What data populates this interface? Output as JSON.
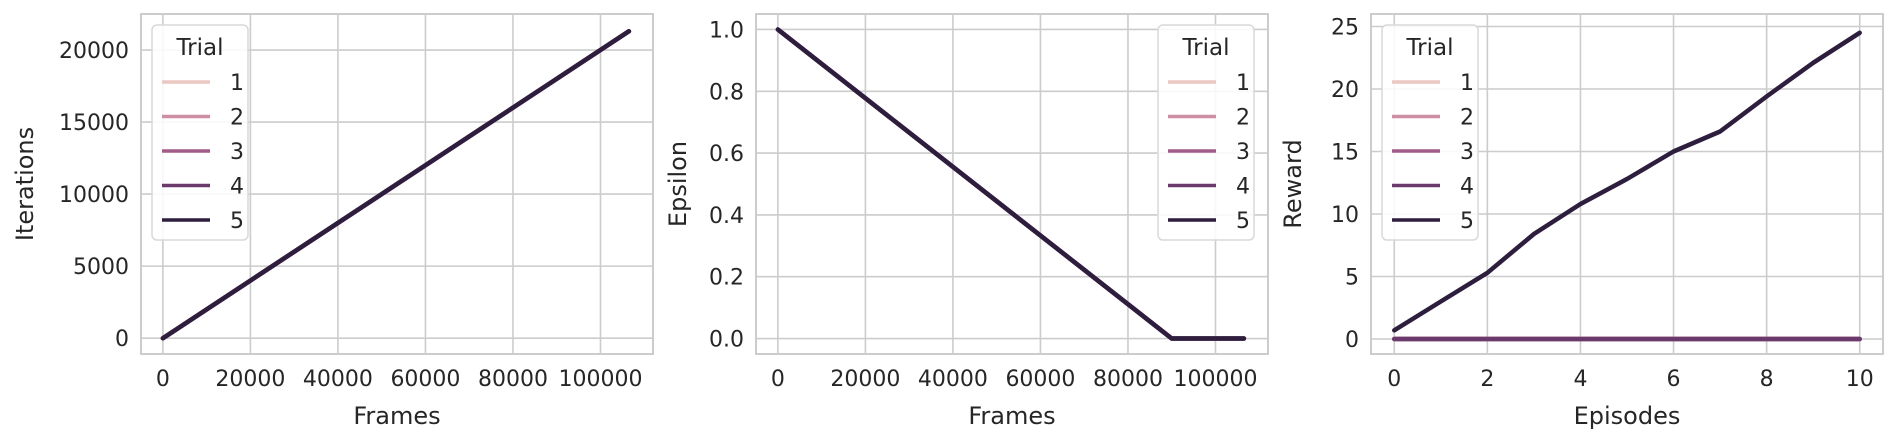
{
  "chart_data": [
    {
      "type": "line",
      "xlabel": "Frames",
      "ylabel": "Iterations",
      "xlim": [
        -5000,
        112000
      ],
      "ylim": [
        -1100,
        22500
      ],
      "xticks": [
        0,
        20000,
        40000,
        60000,
        80000,
        100000
      ],
      "yticks": [
        0,
        5000,
        10000,
        15000,
        20000
      ],
      "xticklabels": [
        "0",
        "20000",
        "40000",
        "60000",
        "80000",
        "100000"
      ],
      "yticklabels": [
        "0",
        "5000",
        "10000",
        "15000",
        "20000"
      ],
      "grid": true,
      "legend": {
        "title": "Trial",
        "placement": "top-left",
        "labels": [
          "1",
          "2",
          "3",
          "4",
          "5"
        ]
      },
      "series": [
        {
          "name": "1",
          "color": "#ebc7c3",
          "x": [
            0,
            106500
          ],
          "y": [
            0,
            21300
          ]
        },
        {
          "name": "2",
          "color": "#cf8fa3",
          "x": [
            0,
            106500
          ],
          "y": [
            0,
            21300
          ]
        },
        {
          "name": "3",
          "color": "#a05b89",
          "x": [
            0,
            106500
          ],
          "y": [
            0,
            21300
          ]
        },
        {
          "name": "4",
          "color": "#6b3a6d",
          "x": [
            0,
            106500
          ],
          "y": [
            0,
            21300
          ]
        },
        {
          "name": "5",
          "color": "#2d1e3e",
          "x": [
            0,
            106500
          ],
          "y": [
            0,
            21300
          ]
        }
      ]
    },
    {
      "type": "line",
      "xlabel": "Frames",
      "ylabel": "Epsilon",
      "xlim": [
        -5000,
        112000
      ],
      "ylim": [
        -0.05,
        1.05
      ],
      "xticks": [
        0,
        20000,
        40000,
        60000,
        80000,
        100000
      ],
      "yticks": [
        0.0,
        0.2,
        0.4,
        0.6,
        0.8,
        1.0
      ],
      "xticklabels": [
        "0",
        "20000",
        "40000",
        "60000",
        "80000",
        "100000"
      ],
      "yticklabels": [
        "0.0",
        "0.2",
        "0.4",
        "0.6",
        "0.8",
        "1.0"
      ],
      "grid": true,
      "legend": {
        "title": "Trial",
        "placement": "top-right",
        "labels": [
          "1",
          "2",
          "3",
          "4",
          "5"
        ]
      },
      "series": [
        {
          "name": "1",
          "color": "#ebc7c3",
          "x": [
            0,
            90000,
            106500
          ],
          "y": [
            1.0,
            0.0,
            0.0
          ]
        },
        {
          "name": "2",
          "color": "#cf8fa3",
          "x": [
            0,
            90000,
            106500
          ],
          "y": [
            1.0,
            0.0,
            0.0
          ]
        },
        {
          "name": "3",
          "color": "#a05b89",
          "x": [
            0,
            90000,
            106500
          ],
          "y": [
            1.0,
            0.0,
            0.0
          ]
        },
        {
          "name": "4",
          "color": "#6b3a6d",
          "x": [
            0,
            90000,
            106500
          ],
          "y": [
            1.0,
            0.0,
            0.0
          ]
        },
        {
          "name": "5",
          "color": "#2d1e3e",
          "x": [
            0,
            90000,
            106500
          ],
          "y": [
            1.0,
            0.0,
            0.0
          ]
        }
      ]
    },
    {
      "type": "line",
      "xlabel": "Episodes",
      "ylabel": "Reward",
      "xlim": [
        -0.5,
        10.5
      ],
      "ylim": [
        -1.2,
        26
      ],
      "xticks": [
        0,
        2,
        4,
        6,
        8,
        10
      ],
      "yticks": [
        0,
        5,
        10,
        15,
        20,
        25
      ],
      "xticklabels": [
        "0",
        "2",
        "4",
        "6",
        "8",
        "10"
      ],
      "yticklabels": [
        "0",
        "5",
        "10",
        "15",
        "20",
        "25"
      ],
      "grid": true,
      "legend": {
        "title": "Trial",
        "placement": "top-left",
        "labels": [
          "1",
          "2",
          "3",
          "4",
          "5"
        ]
      },
      "series": [
        {
          "name": "1",
          "color": "#ebc7c3",
          "x": [
            0,
            1,
            2,
            3,
            4,
            5,
            6,
            7,
            8,
            9,
            10
          ],
          "y": [
            0,
            0,
            0,
            0,
            0,
            0,
            0,
            0,
            0,
            0,
            0
          ]
        },
        {
          "name": "2",
          "color": "#cf8fa3",
          "x": [
            0,
            1,
            2,
            3,
            4,
            5,
            6,
            7,
            8,
            9,
            10
          ],
          "y": [
            0,
            0,
            0,
            0,
            0,
            0,
            0,
            0,
            0,
            0,
            0
          ]
        },
        {
          "name": "3",
          "color": "#a05b89",
          "x": [
            0,
            1,
            2,
            3,
            4,
            5,
            6,
            7,
            8,
            9,
            10
          ],
          "y": [
            0,
            0,
            0,
            0,
            0,
            0,
            0,
            0,
            0,
            0,
            0
          ]
        },
        {
          "name": "4",
          "color": "#6b3a6d",
          "x": [
            0,
            1,
            2,
            3,
            4,
            5,
            6,
            7,
            8,
            9,
            10
          ],
          "y": [
            0,
            0,
            0,
            0,
            0,
            0,
            0,
            0,
            0,
            0,
            0
          ]
        },
        {
          "name": "5",
          "color": "#2d1e3e",
          "x": [
            0,
            1,
            2,
            3,
            4,
            5,
            6,
            7,
            8,
            9,
            10
          ],
          "y": [
            0.7,
            3.0,
            5.3,
            8.4,
            10.8,
            12.8,
            15.0,
            16.6,
            19.4,
            22.1,
            24.5
          ]
        }
      ]
    }
  ]
}
